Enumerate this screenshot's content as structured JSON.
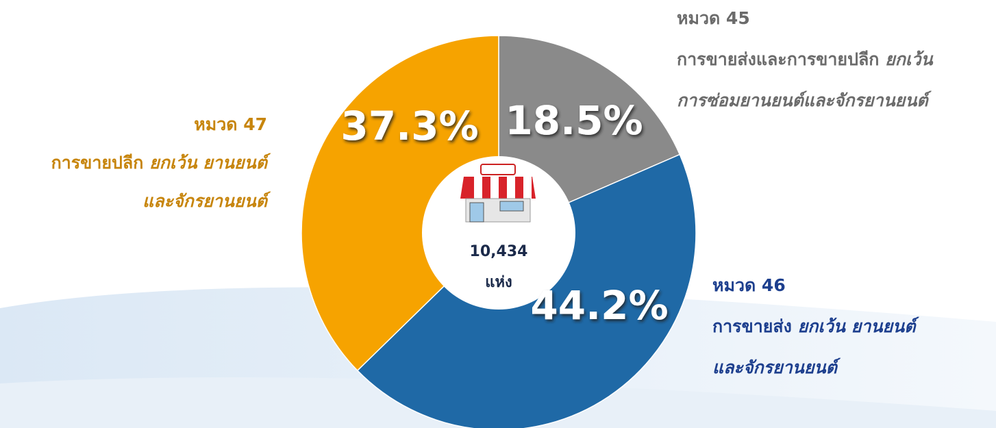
{
  "chart_data": {
    "type": "pie",
    "categories": [
      "หมวด 45",
      "หมวด 46",
      "หมวด 47"
    ],
    "descriptions": [
      [
        [
          {
            "text": "การขายส่งและการขายปลีก ",
            "italic": false
          },
          {
            "text": "ยกเว้น",
            "italic": true
          }
        ],
        [
          {
            "text": "การซ่อมยานยนต์และจักรยานยนต์",
            "italic": true
          }
        ]
      ],
      [
        [
          {
            "text": "การขายส่ง ",
            "italic": false
          },
          {
            "text": "ยกเว้น ยานยนต์",
            "italic": true
          }
        ],
        [
          {
            "text": "และจักรยานยนต์",
            "italic": true
          }
        ]
      ],
      [
        [
          {
            "text": "การขายปลีก ",
            "italic": false
          },
          {
            "text": "ยกเว้น ยานยนต์",
            "italic": true
          }
        ],
        [
          {
            "text": "และจักรยานยนต์",
            "italic": true
          }
        ]
      ]
    ],
    "values": [
      18.5,
      44.2,
      37.3
    ],
    "value_labels": [
      "18.5%",
      "44.2%",
      "37.3%"
    ],
    "colors": [
      "#8a8a8a",
      "#1f69a6",
      "#f6a300"
    ],
    "label_colors": [
      "#6b6b6b",
      "#1d3f8e",
      "#c7850c"
    ],
    "center": {
      "value": 10434,
      "label": "10,434",
      "unit": "แห่ง"
    }
  }
}
